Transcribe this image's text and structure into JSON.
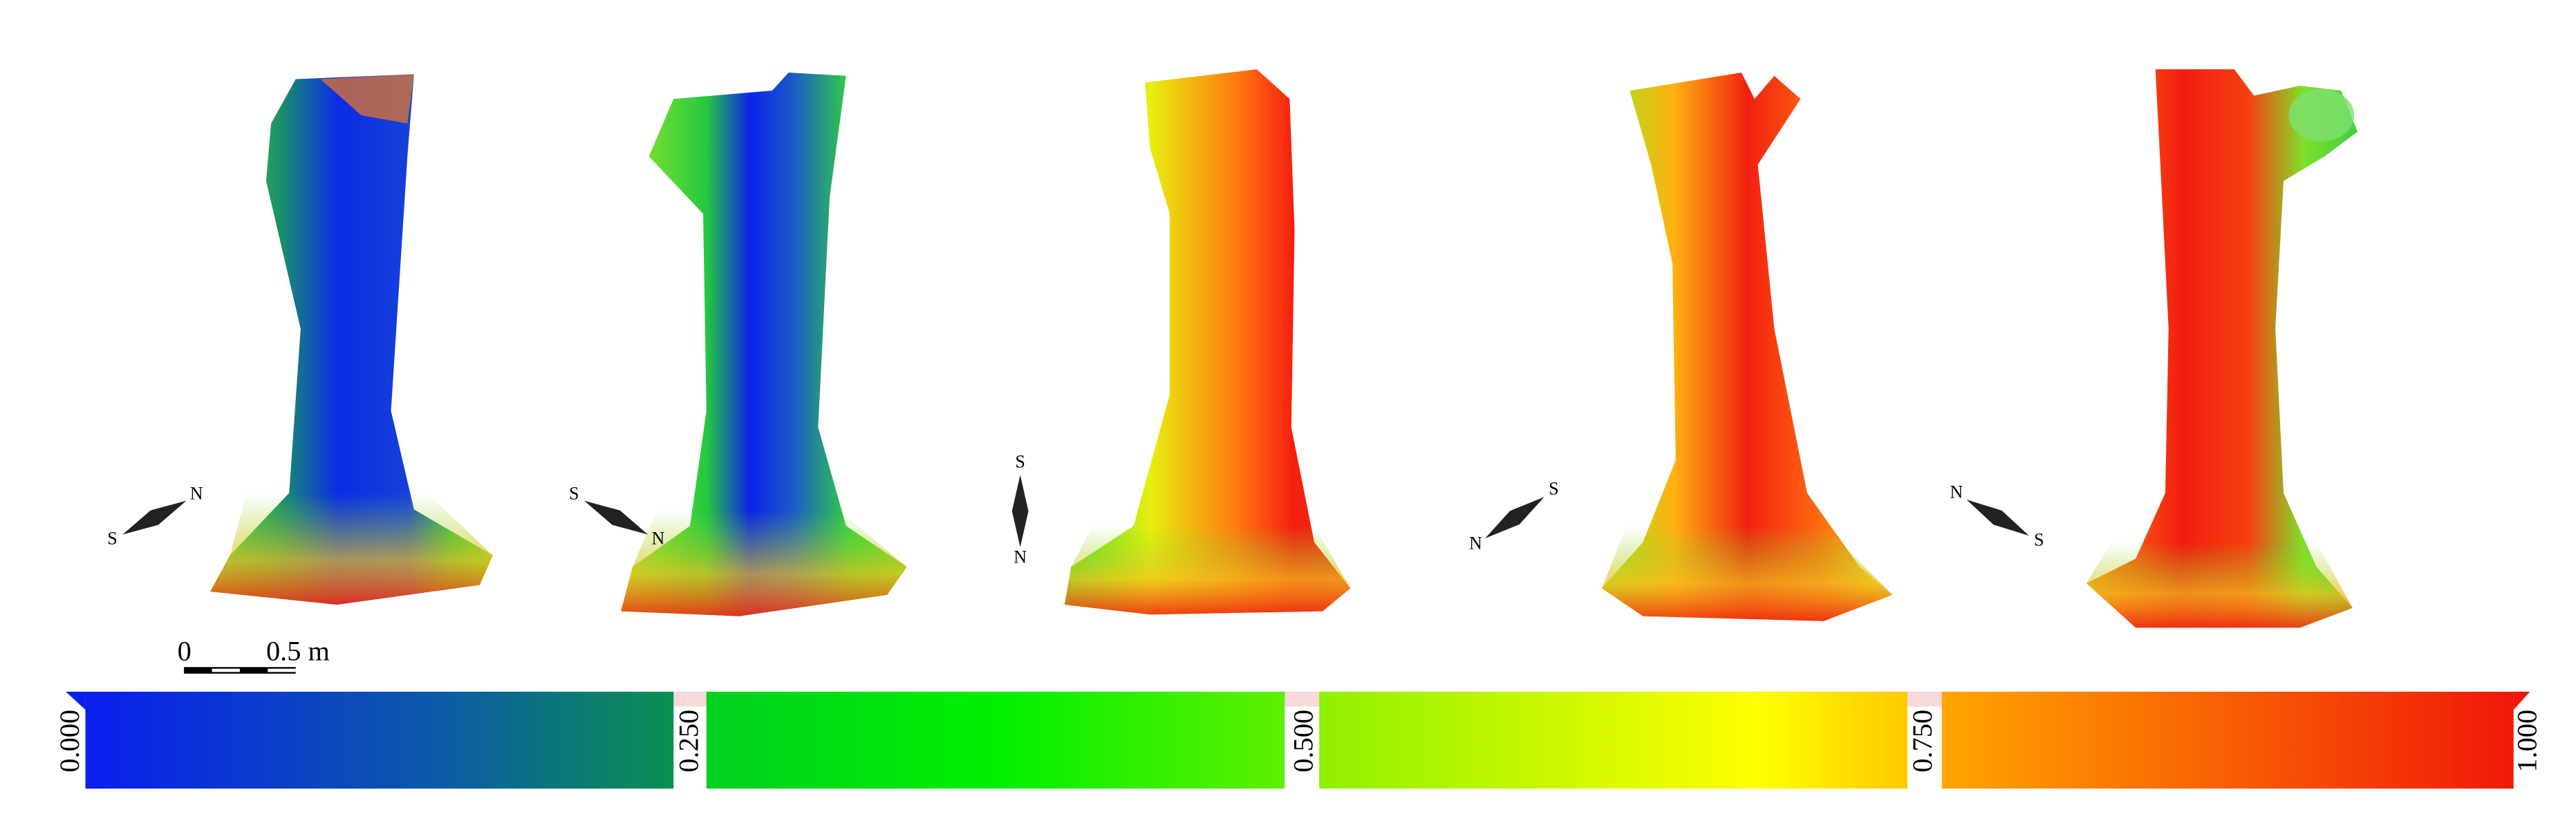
{
  "compasses": [
    {
      "a": "N",
      "b": "S"
    },
    {
      "a": "S",
      "b": "N"
    },
    {
      "a": "S",
      "b": "N"
    },
    {
      "a": "S",
      "b": "N"
    },
    {
      "a": "N",
      "b": "S"
    }
  ],
  "scale_bar": {
    "start": "0",
    "end": "0.5 m"
  },
  "colorbar": {
    "ticks": [
      "0.000",
      "0.250",
      "0.500",
      "0.750",
      "1.000"
    ]
  }
}
